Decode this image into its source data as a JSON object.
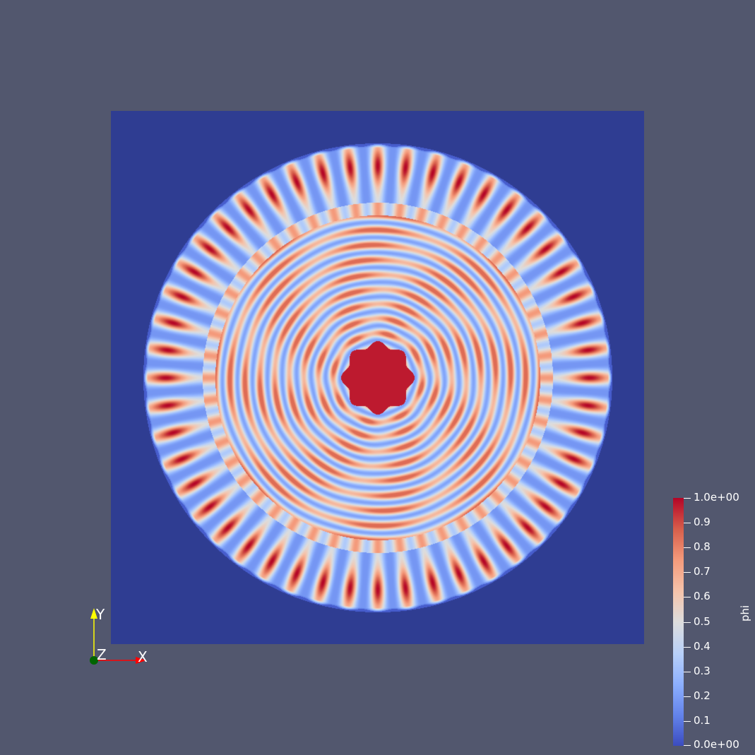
{
  "view": {
    "background_color": "#52576e",
    "domain_background_color": "#2f3d92",
    "colormap": "Cool to Warm"
  },
  "field": {
    "center_disk_value": 1.0,
    "inner_ring_count": 9,
    "outer_petal_count": 48
  },
  "colorbar": {
    "title": "phi",
    "tick_labels": [
      "1.0e+00",
      "0.9",
      "0.8",
      "0.7",
      "0.6",
      "0.5",
      "0.4",
      "0.3",
      "0.2",
      "0.1",
      "0.0e+00"
    ],
    "range": [
      0.0,
      1.0
    ]
  },
  "axes_triad": {
    "x_label": "X",
    "y_label": "Y",
    "z_label": "Z",
    "x_color": "#ff0000",
    "y_color": "#ffff00",
    "z_color": "#006400"
  }
}
